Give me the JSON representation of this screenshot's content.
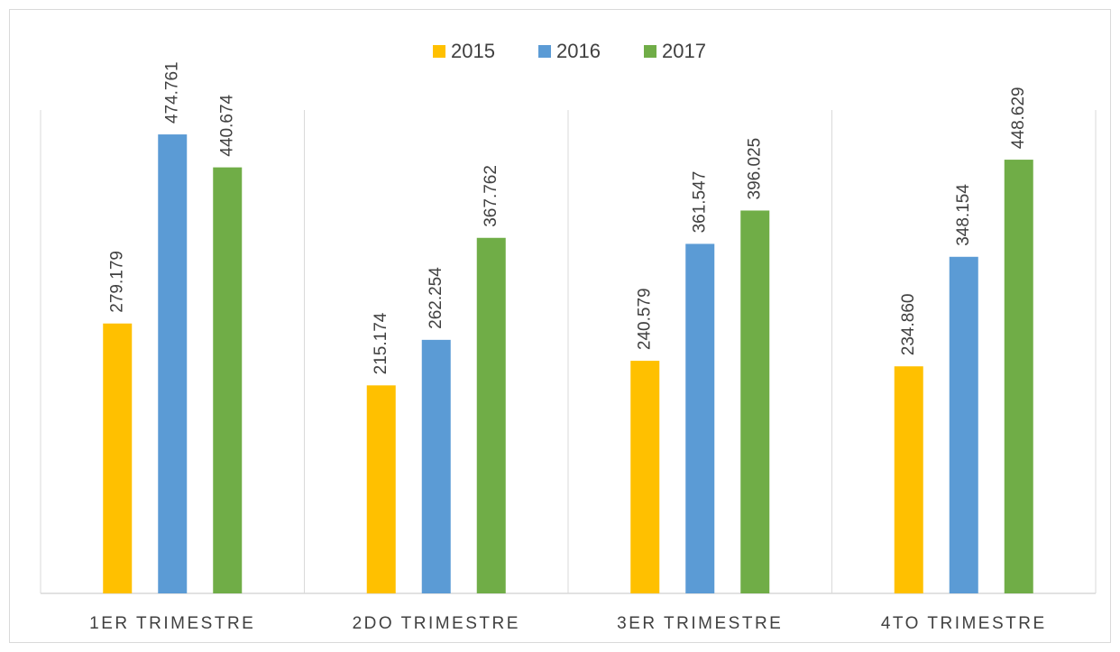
{
  "chart_data": {
    "type": "bar",
    "categories": [
      "1ER TRIMESTRE",
      "2DO TRIMESTRE",
      "3ER TRIMESTRE",
      "4TO TRIMESTRE"
    ],
    "series": [
      {
        "name": "2015",
        "color": "#ffc000",
        "values": [
          279179,
          215174,
          240579,
          234860
        ],
        "value_labels": [
          "279.179",
          "215.174",
          "240.579",
          "234.860"
        ]
      },
      {
        "name": "2016",
        "color": "#5b9bd5",
        "values": [
          474761,
          262254,
          361547,
          348154
        ],
        "value_labels": [
          "474.761",
          "262.254",
          "361.547",
          "348.154"
        ]
      },
      {
        "name": "2017",
        "color": "#70ad47",
        "values": [
          440674,
          367762,
          396025,
          448629
        ],
        "value_labels": [
          "440.674",
          "367.762",
          "396.025",
          "448.629"
        ]
      }
    ],
    "ylim": [
      0,
      500000
    ],
    "legend": "top"
  }
}
